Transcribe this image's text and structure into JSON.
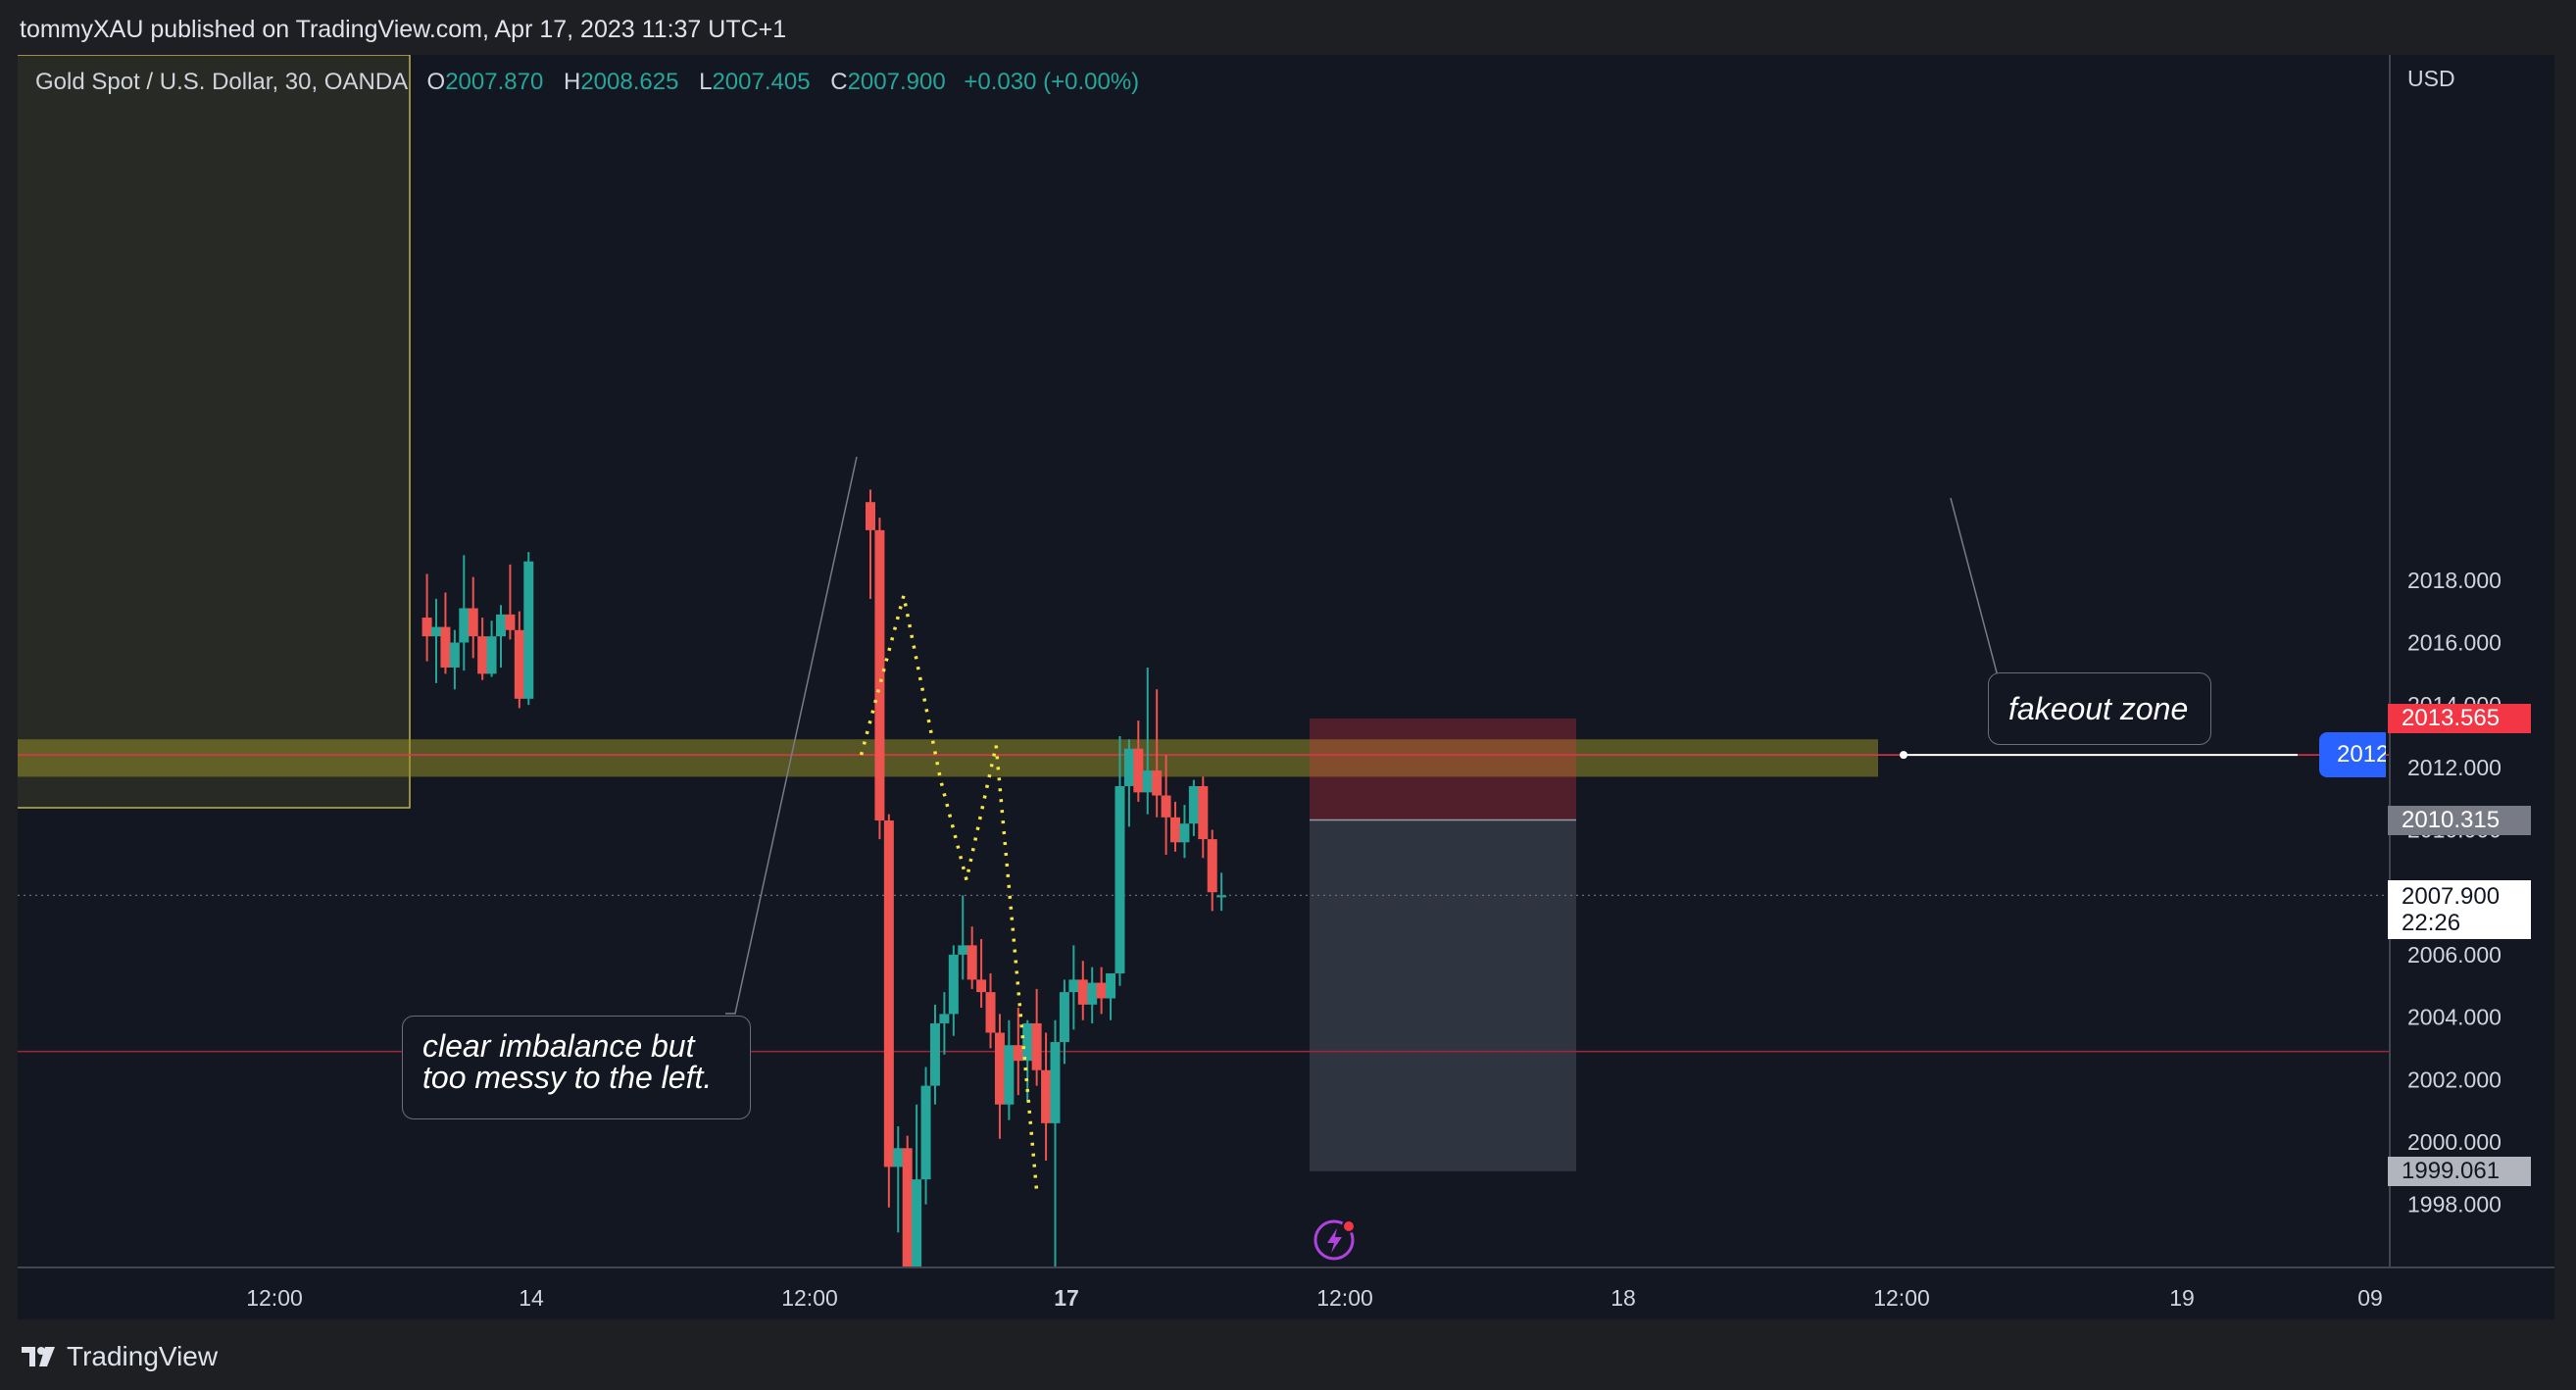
{
  "header": {
    "published_by": "tommyXAU published on TradingView.com, Apr 17, 2023 11:37 UTC+1"
  },
  "legend": {
    "symbol": "Gold Spot / U.S. Dollar, 30, OANDA",
    "open_label": "O",
    "open": "2007.870",
    "high_label": "H",
    "high": "2008.625",
    "low_label": "L",
    "low": "2007.405",
    "close_label": "C",
    "close": "2007.900",
    "change": "+0.030 (+0.00%)"
  },
  "price_axis": {
    "currency": "USD",
    "ticks": [
      "2018.000",
      "2016.000",
      "2014.000",
      "2012.000",
      "2010.000",
      "2006.000",
      "2004.000",
      "2002.000",
      "2000.000",
      "1998.000"
    ],
    "tags": {
      "stop": "2013.565",
      "entry": "2010.315",
      "current_price": "2007.900",
      "countdown": "22:26",
      "target": "1999.061",
      "alert_level": "2012"
    }
  },
  "time_axis": {
    "ticks": [
      "12:00",
      "14",
      "12:00",
      "17",
      "12:00",
      "18",
      "12:00",
      "19",
      "09"
    ]
  },
  "annotations": {
    "imbalance_note_line1": "clear imbalance but",
    "imbalance_note_line2": "too messy to the left.",
    "fakeout_note": "fakeout zone"
  },
  "footer": {
    "brand": "TradingView"
  },
  "colors": {
    "background": "#131722",
    "bull": "#26a69a",
    "bear": "#ef5350",
    "zone": "#6d6d1c",
    "projection": "#f5e642",
    "stop_tag": "#f23645",
    "alert_tag": "#2962ff"
  },
  "chart_data": {
    "type": "candlestick",
    "symbol": "Gold Spot / U.S. Dollar",
    "interval": "30",
    "ylim": [
      1996.6,
      2019.7
    ],
    "series": [
      {
        "t": -24.0,
        "o": 2016.8,
        "h": 2018.2,
        "l": 2015.4,
        "c": 2016.2
      },
      {
        "t": -23.5,
        "o": 2016.2,
        "h": 2017.4,
        "l": 2014.7,
        "c": 2016.5
      },
      {
        "t": -23.0,
        "o": 2016.5,
        "h": 2017.6,
        "l": 2015.0,
        "c": 2015.2
      },
      {
        "t": -22.5,
        "o": 2015.2,
        "h": 2016.4,
        "l": 2014.5,
        "c": 2016.0
      },
      {
        "t": -22.0,
        "o": 2016.0,
        "h": 2018.8,
        "l": 2015.1,
        "c": 2017.1
      },
      {
        "t": -21.5,
        "o": 2017.1,
        "h": 2018.1,
        "l": 2015.5,
        "c": 2016.2
      },
      {
        "t": -21.0,
        "o": 2016.2,
        "h": 2016.8,
        "l": 2014.8,
        "c": 2015.0
      },
      {
        "t": -20.5,
        "o": 2015.0,
        "h": 2016.7,
        "l": 2014.9,
        "c": 2016.2
      },
      {
        "t": -20.0,
        "o": 2016.2,
        "h": 2017.2,
        "l": 2015.2,
        "c": 2016.9
      },
      {
        "t": -19.5,
        "o": 2016.9,
        "h": 2018.5,
        "l": 2016.1,
        "c": 2016.4
      },
      {
        "t": -19.0,
        "o": 2016.4,
        "h": 2017.0,
        "l": 2013.9,
        "c": 2014.2
      },
      {
        "t": -18.5,
        "o": 2014.2,
        "h": 2018.9,
        "l": 2014.0,
        "c": 2018.6
      },
      {
        "t": 0.0,
        "o": 2020.5,
        "h": 2020.9,
        "l": 2017.4,
        "c": 2019.6
      },
      {
        "t": 0.5,
        "o": 2019.6,
        "h": 2020.0,
        "l": 2009.7,
        "c": 2010.3
      },
      {
        "t": 1.0,
        "o": 2010.3,
        "h": 2010.5,
        "l": 1997.9,
        "c": 1999.2
      },
      {
        "t": 1.5,
        "o": 1999.2,
        "h": 2000.5,
        "l": 1997.1,
        "c": 1999.8
      },
      {
        "t": 2.0,
        "o": 1999.8,
        "h": 2000.2,
        "l": 1995.4,
        "c": 1996.0
      },
      {
        "t": 2.5,
        "o": 1996.0,
        "h": 2001.2,
        "l": 1995.3,
        "c": 1998.8
      },
      {
        "t": 3.0,
        "o": 1998.8,
        "h": 2002.4,
        "l": 1998.0,
        "c": 2001.8
      },
      {
        "t": 3.5,
        "o": 2001.8,
        "h": 2004.4,
        "l": 2001.2,
        "c": 2003.8
      },
      {
        "t": 4.0,
        "o": 2003.8,
        "h": 2004.8,
        "l": 2002.8,
        "c": 2004.1
      },
      {
        "t": 4.5,
        "o": 2004.1,
        "h": 2006.3,
        "l": 2003.4,
        "c": 2006.0
      },
      {
        "t": 5.0,
        "o": 2006.0,
        "h": 2007.9,
        "l": 2005.2,
        "c": 2006.3
      },
      {
        "t": 5.5,
        "o": 2006.3,
        "h": 2006.9,
        "l": 2004.9,
        "c": 2005.2
      },
      {
        "t": 6.0,
        "o": 2005.2,
        "h": 2006.5,
        "l": 2004.3,
        "c": 2004.8
      },
      {
        "t": 6.5,
        "o": 2004.8,
        "h": 2005.4,
        "l": 2003.0,
        "c": 2003.5
      },
      {
        "t": 7.0,
        "o": 2003.5,
        "h": 2004.1,
        "l": 2000.1,
        "c": 2001.2
      },
      {
        "t": 7.5,
        "o": 2001.2,
        "h": 2003.9,
        "l": 2000.7,
        "c": 2003.1
      },
      {
        "t": 8.0,
        "o": 2003.1,
        "h": 2004.3,
        "l": 2001.5,
        "c": 2002.6
      },
      {
        "t": 8.5,
        "o": 2002.6,
        "h": 2003.9,
        "l": 2001.3,
        "c": 2003.8
      },
      {
        "t": 9.0,
        "o": 2003.8,
        "h": 2004.9,
        "l": 2001.8,
        "c": 2002.3
      },
      {
        "t": 9.5,
        "o": 2002.3,
        "h": 2003.5,
        "l": 1999.4,
        "c": 2000.6
      },
      {
        "t": 10.0,
        "o": 2000.6,
        "h": 2003.9,
        "l": 1996.0,
        "c": 2003.2
      },
      {
        "t": 10.5,
        "o": 2003.2,
        "h": 2005.2,
        "l": 2002.5,
        "c": 2004.8
      },
      {
        "t": 11.0,
        "o": 2004.8,
        "h": 2006.3,
        "l": 2003.6,
        "c": 2005.2
      },
      {
        "t": 11.5,
        "o": 2005.2,
        "h": 2005.8,
        "l": 2003.9,
        "c": 2004.4
      },
      {
        "t": 12.0,
        "o": 2004.4,
        "h": 2005.6,
        "l": 2003.8,
        "c": 2005.1
      },
      {
        "t": 12.5,
        "o": 2005.1,
        "h": 2005.6,
        "l": 2004.1,
        "c": 2004.6
      },
      {
        "t": 13.0,
        "o": 2004.6,
        "h": 2005.2,
        "l": 2003.9,
        "c": 2005.4
      },
      {
        "t": 13.5,
        "o": 2005.4,
        "h": 2013.0,
        "l": 2005.0,
        "c": 2011.4
      },
      {
        "t": 14.0,
        "o": 2011.4,
        "h": 2012.9,
        "l": 2010.1,
        "c": 2012.6
      },
      {
        "t": 14.5,
        "o": 2012.6,
        "h": 2013.5,
        "l": 2010.9,
        "c": 2011.2
      },
      {
        "t": 15.0,
        "o": 2011.2,
        "h": 2015.2,
        "l": 2010.5,
        "c": 2011.9
      },
      {
        "t": 15.5,
        "o": 2011.9,
        "h": 2014.5,
        "l": 2010.4,
        "c": 2011.1
      },
      {
        "t": 16.0,
        "o": 2011.1,
        "h": 2012.4,
        "l": 2009.2,
        "c": 2010.4
      },
      {
        "t": 16.5,
        "o": 2010.4,
        "h": 2010.9,
        "l": 2009.3,
        "c": 2009.6
      },
      {
        "t": 17.0,
        "o": 2009.6,
        "h": 2010.8,
        "l": 2009.1,
        "c": 2010.2
      },
      {
        "t": 17.5,
        "o": 2010.2,
        "h": 2011.6,
        "l": 2009.8,
        "c": 2011.4
      },
      {
        "t": 18.0,
        "o": 2011.4,
        "h": 2011.7,
        "l": 2009.1,
        "c": 2009.7
      },
      {
        "t": 18.5,
        "o": 2009.7,
        "h": 2010.0,
        "l": 2007.4,
        "c": 2008.0
      },
      {
        "t": 19.0,
        "o": 2007.87,
        "h": 2008.625,
        "l": 2007.405,
        "c": 2007.9
      }
    ],
    "levels": {
      "stop": 2013.565,
      "entry": 2010.315,
      "target": 1999.061,
      "current": 2007.9,
      "alert": 2012.4,
      "lower_line": 2002.9
    },
    "zones": [
      {
        "name": "supply-zone",
        "from": 2011.7,
        "to": 2012.9
      }
    ],
    "projection_path": [
      {
        "t": -0.5,
        "p": 2012.4
      },
      {
        "t": 1.8,
        "p": 2017.5
      },
      {
        "t": 3.8,
        "p": 2011.6
      },
      {
        "t": 5.2,
        "p": 2008.4
      },
      {
        "t": 6.8,
        "p": 2012.7
      },
      {
        "t": 9.0,
        "p": 1998.4
      }
    ]
  }
}
